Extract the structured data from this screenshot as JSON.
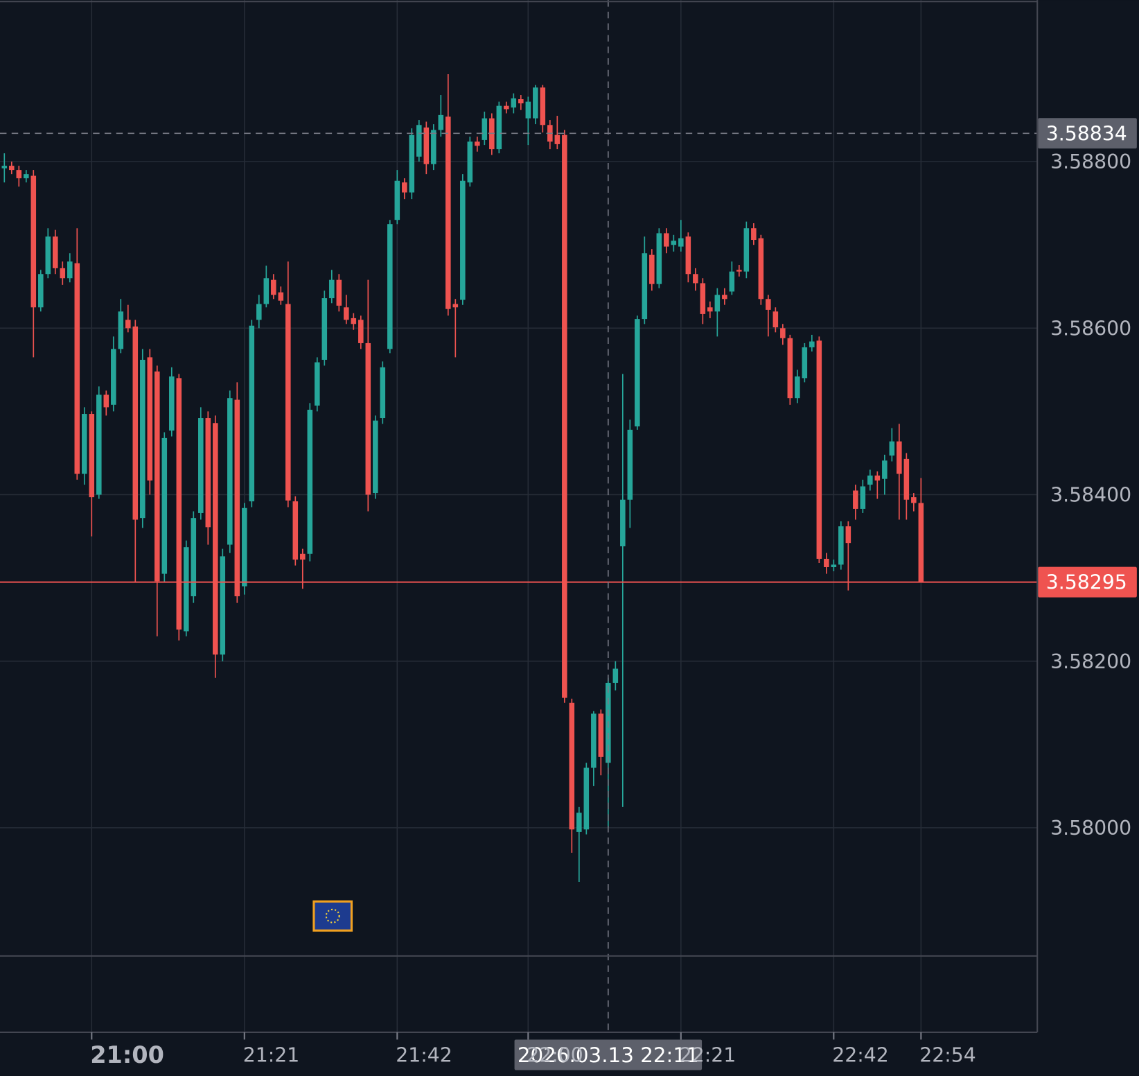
{
  "chart_data": {
    "type": "candlestick",
    "ylim": [
      3.57846,
      3.58994
    ],
    "yticks": [
      {
        "value": 3.58,
        "label": "3.58000"
      },
      {
        "value": 3.582,
        "label": "3.58200"
      },
      {
        "value": 3.584,
        "label": "3.58400"
      },
      {
        "value": 3.586,
        "label": "3.58600"
      },
      {
        "value": 3.588,
        "label": "3.58800"
      }
    ],
    "xticks": [
      {
        "value": 12,
        "label": "21:00"
      },
      {
        "value": 33,
        "label": "21:21"
      },
      {
        "value": 54,
        "label": "21:42"
      },
      {
        "value": 72,
        "label": "22:00"
      },
      {
        "value": 93,
        "label": "22:21"
      },
      {
        "value": 114,
        "label": "22:42"
      },
      {
        "value": 126,
        "label": "22:54"
      }
    ],
    "grid": true,
    "up_color": "#26a69a",
    "down_color": "#ef5350",
    "last_price": {
      "value": 3.58295,
      "label": "3.58295"
    },
    "crosshair": {
      "price": {
        "value": 3.58834,
        "label": "3.58834"
      },
      "time": {
        "value": 83,
        "label": "2026.03.13 22:11"
      }
    },
    "open": [
      3.58792,
      3.58795,
      3.5879,
      3.5878,
      3.58783,
      3.58625,
      3.58665,
      3.5871,
      3.58672,
      3.5866,
      3.58678,
      3.58425,
      3.58497,
      3.584,
      3.5852,
      3.58508,
      3.58575,
      3.5861,
      3.58602,
      3.58372,
      3.58565,
      3.58548,
      3.58305,
      3.58477,
      3.5854,
      3.58236,
      3.58278,
      3.58378,
      3.58492,
      3.58486,
      3.58208,
      3.5834,
      3.58514,
      3.5829,
      3.58392,
      3.5861,
      3.58629,
      3.58658,
      3.58643,
      3.58629,
      3.58392,
      3.58329,
      3.58329,
      3.58507,
      3.58562,
      3.58636,
      3.58658,
      3.58625,
      3.58612,
      3.5861,
      3.58582,
      3.58402,
      3.58492,
      3.58575,
      3.5873,
      3.58775,
      3.58763,
      3.58806,
      3.58841,
      3.58797,
      3.58838,
      3.58854,
      3.58629,
      3.58634,
      3.58775,
      3.58824,
      3.58826,
      3.58852,
      3.58815,
      3.58867,
      3.58865,
      3.58875,
      3.58852,
      3.58852,
      3.58889,
      3.58844,
      3.58832,
      3.58832,
      3.5815,
      3.57995,
      3.57998,
      3.58072,
      3.58137,
      3.58078,
      3.58174,
      3.58338,
      3.58394,
      3.58482,
      3.58611,
      3.58688,
      3.58653,
      3.58714,
      3.587,
      3.58698,
      3.5871,
      3.58665,
      3.58654,
      3.58625,
      3.5862,
      3.5864,
      3.58644,
      3.5867,
      3.58668,
      3.5872,
      3.58708,
      3.58635,
      3.5862,
      3.586,
      3.58588,
      3.58516,
      3.5854,
      3.58577,
      3.58585,
      3.58323,
      3.58313,
      3.58316,
      3.58362,
      3.58405,
      3.58383,
      3.58412,
      3.58423,
      3.58419,
      3.58447,
      3.58464,
      3.58443,
      3.58397,
      3.5839
    ],
    "high": [
      3.5881,
      3.588,
      3.58795,
      3.5879,
      3.5879,
      3.5867,
      3.5872,
      3.58718,
      3.5868,
      3.5869,
      3.5872,
      3.58505,
      3.585,
      3.5853,
      3.58525,
      3.5859,
      3.58635,
      3.58628,
      3.5861,
      3.58575,
      3.58575,
      3.58555,
      3.58475,
      3.58553,
      3.58545,
      3.58345,
      3.5838,
      3.58505,
      3.585,
      3.58495,
      3.58335,
      3.58525,
      3.58535,
      3.5839,
      3.5861,
      3.5864,
      3.58675,
      3.58665,
      3.5865,
      3.5868,
      3.58398,
      3.58335,
      3.5851,
      3.58565,
      3.58645,
      3.5867,
      3.58665,
      3.5864,
      3.58618,
      3.58615,
      3.58658,
      3.58495,
      3.5856,
      3.5873,
      3.5879,
      3.5878,
      3.5884,
      3.5885,
      3.58848,
      3.58845,
      3.5888,
      3.58905,
      3.58635,
      3.58785,
      3.5883,
      3.5883,
      3.5886,
      3.58858,
      3.58872,
      3.58872,
      3.58882,
      3.5888,
      3.58878,
      3.58892,
      3.58892,
      3.5885,
      3.58855,
      3.58838,
      3.58155,
      3.58025,
      3.58078,
      3.5814,
      3.58142,
      3.5818,
      3.582,
      3.58545,
      3.5849,
      3.58615,
      3.5871,
      3.58695,
      3.5872,
      3.5872,
      3.58712,
      3.5873,
      3.58715,
      3.58672,
      3.5866,
      3.58632,
      3.58648,
      3.58648,
      3.5868,
      3.58676,
      3.58728,
      3.58726,
      3.58712,
      3.5864,
      3.58625,
      3.58605,
      3.58592,
      3.5855,
      3.58582,
      3.58592,
      3.5859,
      3.5833,
      3.58322,
      3.58368,
      3.58368,
      3.58412,
      3.58418,
      3.5843,
      3.58428,
      3.58448,
      3.5848,
      3.58485,
      3.5845,
      3.58402,
      3.5842
    ],
    "low": [
      3.58775,
      3.58785,
      3.5877,
      3.58775,
      3.58565,
      3.5862,
      3.5866,
      3.58665,
      3.58652,
      3.58655,
      3.58418,
      3.58412,
      3.5835,
      3.58395,
      3.58495,
      3.585,
      3.5857,
      3.58595,
      3.58295,
      3.5836,
      3.584,
      3.5823,
      3.58295,
      3.5847,
      3.58225,
      3.5823,
      3.5827,
      3.5837,
      3.5834,
      3.5818,
      3.582,
      3.5833,
      3.5827,
      3.5828,
      3.58385,
      3.586,
      3.58625,
      3.58635,
      3.58628,
      3.58385,
      3.58315,
      3.58287,
      3.5832,
      3.585,
      3.58555,
      3.5863,
      3.5862,
      3.58605,
      3.58598,
      3.58575,
      3.5838,
      3.58395,
      3.58485,
      3.5857,
      3.58725,
      3.58755,
      3.58755,
      3.588,
      3.58785,
      3.5879,
      3.5883,
      3.58615,
      3.58565,
      3.58628,
      3.5877,
      3.58812,
      3.5882,
      3.58808,
      3.5881,
      3.58858,
      3.58858,
      3.58862,
      3.5882,
      3.58845,
      3.58835,
      3.58815,
      3.58815,
      3.5815,
      3.5797,
      3.57935,
      3.57992,
      3.5805,
      3.58063,
      3.58,
      3.58165,
      3.58025,
      3.5836,
      3.58478,
      3.58605,
      3.58645,
      3.58648,
      3.5869,
      3.58692,
      3.58692,
      3.58655,
      3.58645,
      3.58605,
      3.58612,
      3.5859,
      3.58628,
      3.5864,
      3.58662,
      3.5866,
      3.587,
      3.58628,
      3.5859,
      3.58595,
      3.5858,
      3.58508,
      3.5851,
      3.58535,
      3.58572,
      3.58318,
      3.58305,
      3.58308,
      3.5831,
      3.58285,
      3.5837,
      3.58378,
      3.58405,
      3.58395,
      3.584,
      3.5844,
      3.5837,
      3.5837,
      3.5838,
      3.58295
    ],
    "close": [
      3.58795,
      3.5879,
      3.5878,
      3.58785,
      3.58625,
      3.58665,
      3.5871,
      3.58672,
      3.5866,
      3.5868,
      3.58425,
      3.58497,
      3.58397,
      3.5852,
      3.58505,
      3.58575,
      3.5862,
      3.586,
      3.5837,
      3.58562,
      3.58417,
      3.58296,
      3.58468,
      3.58542,
      3.58238,
      3.58337,
      3.58372,
      3.58492,
      3.58361,
      3.58208,
      3.58326,
      3.58516,
      3.58278,
      3.58384,
      3.58603,
      3.58629,
      3.5866,
      3.5864,
      3.58633,
      3.58393,
      3.58322,
      3.58322,
      3.58502,
      3.58559,
      3.58636,
      3.58658,
      3.58627,
      3.5861,
      3.58605,
      3.58582,
      3.584,
      3.58489,
      3.58553,
      3.58725,
      3.58777,
      3.58763,
      3.58832,
      3.58844,
      3.58797,
      3.58838,
      3.58856,
      3.58623,
      3.58625,
      3.58777,
      3.58824,
      3.58819,
      3.58852,
      3.58815,
      3.58867,
      3.58863,
      3.58876,
      3.5887,
      3.58872,
      3.58889,
      3.58844,
      3.58824,
      3.58821,
      3.58156,
      3.57998,
      3.58018,
      3.58072,
      3.58137,
      3.58085,
      3.58174,
      3.58191,
      3.58394,
      3.58478,
      3.58611,
      3.5869,
      3.58653,
      3.58714,
      3.58698,
      3.58705,
      3.58708,
      3.58665,
      3.58654,
      3.58617,
      3.5862,
      3.5864,
      3.58635,
      3.58668,
      3.58668,
      3.5872,
      3.58706,
      3.58635,
      3.58622,
      3.58601,
      3.58588,
      3.58516,
      3.58542,
      3.58577,
      3.58584,
      3.58323,
      3.58313,
      3.58316,
      3.58362,
      3.58342,
      3.58383,
      3.5841,
      3.58423,
      3.58417,
      3.58441,
      3.58464,
      3.58425,
      3.58394,
      3.5839,
      3.58295
    ]
  }
}
